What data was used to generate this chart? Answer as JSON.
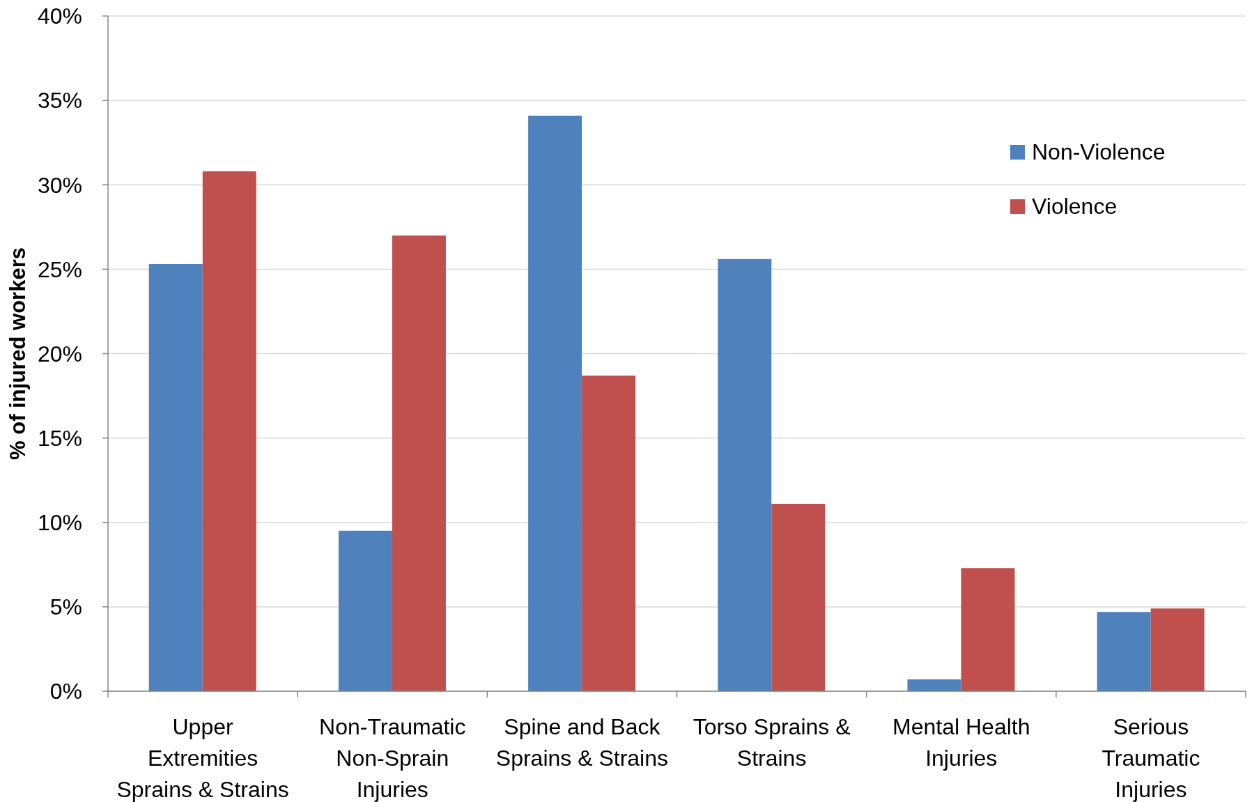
{
  "chart_data": {
    "type": "bar",
    "ylabel": "% of injured workers",
    "categories": [
      "Upper Extremities Sprains & Strains",
      "Non-Traumatic Non-Sprain Injuries",
      "Spine and Back Sprains & Strains",
      "Torso Sprains & Strains",
      "Mental Health Injuries",
      "Serious Traumatic Injuries"
    ],
    "series": [
      {
        "name": "Non-Violence",
        "color": "#4f81bd",
        "values": [
          25.3,
          9.5,
          34.1,
          25.6,
          0.7,
          4.7
        ]
      },
      {
        "name": "Violence",
        "color": "#c0504d",
        "values": [
          30.8,
          27.0,
          18.7,
          11.1,
          7.3,
          4.9
        ]
      }
    ],
    "ylim": [
      0,
      40
    ],
    "yticks": [
      {
        "value": 0,
        "label": "0%"
      },
      {
        "value": 5,
        "label": "5%"
      },
      {
        "value": 10,
        "label": "10%"
      },
      {
        "value": 15,
        "label": "15%"
      },
      {
        "value": 20,
        "label": "20%"
      },
      {
        "value": 25,
        "label": "25%"
      },
      {
        "value": 30,
        "label": "30%"
      },
      {
        "value": 35,
        "label": "35%"
      },
      {
        "value": 40,
        "label": "40%"
      }
    ],
    "grid": "y",
    "legend": "top right"
  }
}
